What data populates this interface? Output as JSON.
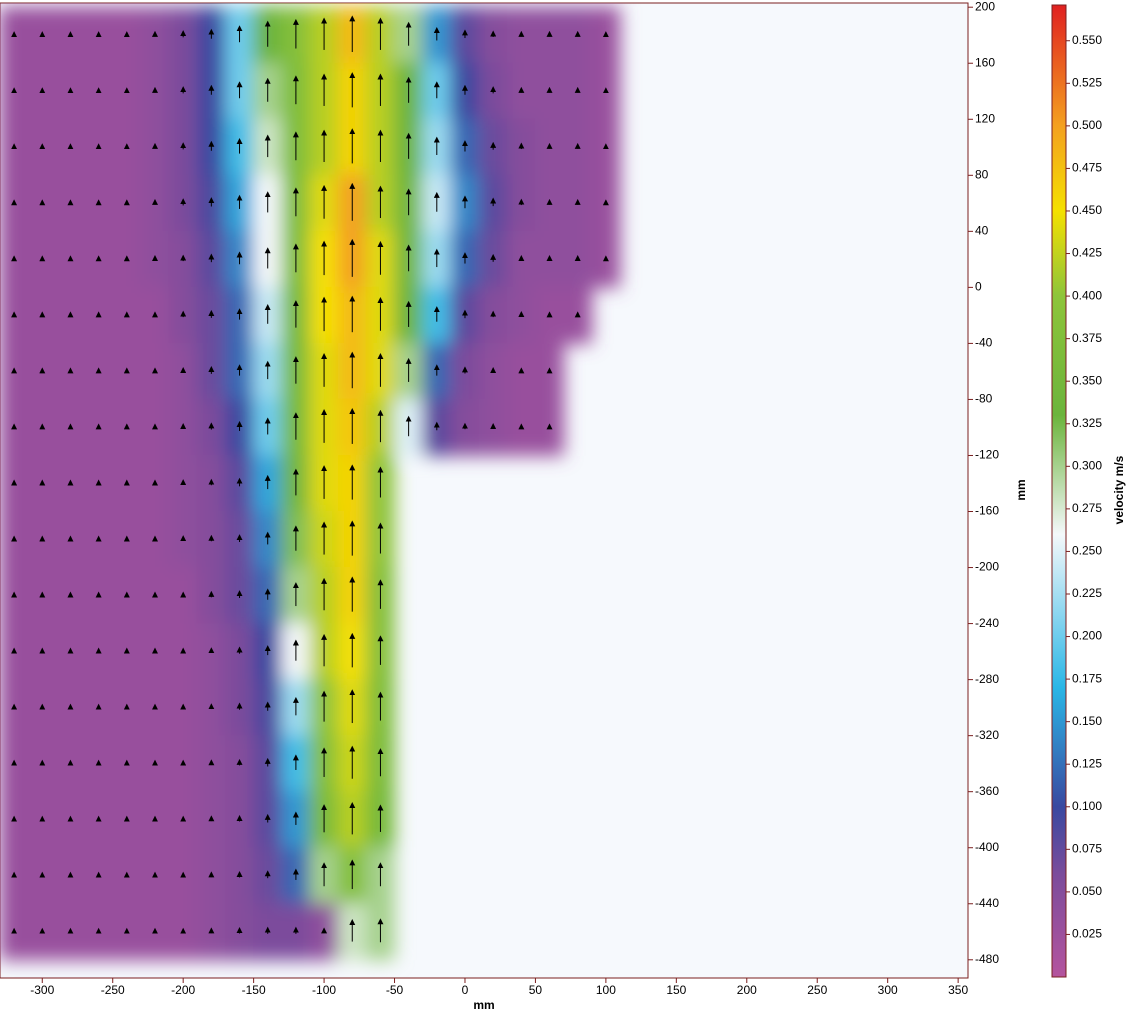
{
  "chart_data": {
    "type": "vector-heatmap",
    "x_label": "mm",
    "y_label": "mm",
    "colorbar_label": "velocity m/s",
    "xlim": [
      -330,
      357
    ],
    "ylim": [
      -493,
      203
    ],
    "xticks": [
      -300,
      -250,
      -200,
      -150,
      -100,
      -50,
      0,
      50,
      100,
      150,
      200,
      250,
      300,
      350
    ],
    "yticks": [
      200,
      160,
      120,
      80,
      40,
      0,
      -40,
      -80,
      -120,
      -160,
      -200,
      -240,
      -280,
      -320,
      -360,
      -400,
      -440,
      -480
    ],
    "clim": [
      0,
      0.571
    ],
    "cticks": [
      0.025,
      {
        "value": 0.05,
        "label": "0.050"
      },
      0.075,
      {
        "value": 0.1,
        "label": "0.100"
      },
      0.125,
      {
        "value": 0.15,
        "label": "0.150"
      },
      0.175,
      {
        "value": 0.2,
        "label": "0.200"
      },
      0.225,
      {
        "value": 0.25,
        "label": "0.250"
      },
      0.275,
      {
        "value": 0.3,
        "label": "0.300"
      },
      0.325,
      {
        "value": 0.35,
        "label": "0.350"
      },
      0.375,
      {
        "value": 0.4,
        "label": "0.400"
      },
      0.425,
      {
        "value": 0.45,
        "label": "0.450"
      },
      0.475,
      {
        "value": 0.5,
        "label": "0.500"
      },
      0.525,
      {
        "value": 0.55,
        "label": "0.550"
      }
    ],
    "colormap": [
      {
        "value": 0,
        "color": "#b4549e"
      },
      {
        "value": 0.06,
        "color": "#7c4c9c"
      },
      {
        "value": 0.1,
        "color": "#3a48a0"
      },
      {
        "value": 0.17,
        "color": "#2bb6e6"
      },
      {
        "value": 0.26,
        "color": "#f4f8fa"
      },
      {
        "value": 0.33,
        "color": "#6cb43c"
      },
      {
        "value": 0.4,
        "color": "#8ec43a"
      },
      {
        "value": 0.45,
        "color": "#f5e000"
      },
      {
        "value": 0.5,
        "color": "#f4a020"
      },
      {
        "value": 0.571,
        "color": "#e02020"
      }
    ],
    "x": [
      -320,
      -300,
      -280,
      -260,
      -240,
      -220,
      -200,
      -180,
      -160,
      -140,
      -120,
      -100,
      -80,
      -60,
      -40,
      -20,
      0,
      20,
      40,
      60,
      80,
      100
    ],
    "y": [
      180,
      140,
      100,
      60,
      20,
      -20,
      -60,
      -100,
      -140,
      -180,
      -220,
      -260,
      -300,
      -340,
      -380,
      -420,
      -460
    ],
    "values": [
      [
        0.03,
        0.03,
        0.03,
        0.03,
        0.03,
        0.04,
        0.06,
        0.1,
        0.2,
        0.33,
        0.38,
        0.42,
        0.48,
        0.42,
        0.3,
        0.15,
        0.08,
        0.05,
        0.04,
        0.04,
        0.04,
        0.03
      ],
      [
        0.03,
        0.03,
        0.03,
        0.03,
        0.03,
        0.04,
        0.06,
        0.1,
        0.2,
        0.3,
        0.37,
        0.42,
        0.46,
        0.42,
        0.33,
        0.2,
        0.1,
        0.06,
        0.04,
        0.04,
        0.04,
        0.03
      ],
      [
        0.03,
        0.03,
        0.03,
        0.03,
        0.03,
        0.04,
        0.06,
        0.1,
        0.18,
        0.28,
        0.37,
        0.42,
        0.46,
        0.42,
        0.33,
        0.22,
        0.12,
        0.07,
        0.05,
        0.04,
        0.04,
        0.03
      ],
      [
        0.03,
        0.03,
        0.03,
        0.03,
        0.03,
        0.04,
        0.06,
        0.09,
        0.16,
        0.26,
        0.37,
        0.44,
        0.5,
        0.42,
        0.34,
        0.24,
        0.14,
        0.08,
        0.05,
        0.04,
        0.04,
        0.03
      ],
      [
        0.03,
        0.03,
        0.03,
        0.03,
        0.03,
        0.04,
        0.05,
        0.08,
        0.14,
        0.26,
        0.37,
        0.45,
        0.5,
        0.44,
        0.34,
        0.22,
        0.12,
        0.07,
        0.04,
        0.04,
        0.04,
        0.03
      ],
      [
        0.03,
        0.03,
        0.03,
        0.03,
        0.03,
        0.03,
        0.05,
        0.07,
        0.12,
        0.24,
        0.35,
        0.45,
        0.48,
        0.44,
        0.33,
        0.18,
        0.08,
        0.05,
        0.04,
        0.03,
        0.03,
        null
      ],
      [
        0.03,
        0.03,
        0.03,
        0.03,
        0.03,
        0.03,
        0.04,
        0.07,
        0.12,
        0.22,
        0.35,
        0.44,
        0.48,
        0.44,
        0.3,
        0.12,
        0.06,
        0.04,
        0.03,
        0.03,
        null,
        null
      ],
      [
        0.03,
        0.03,
        0.03,
        0.03,
        0.03,
        0.03,
        0.04,
        0.06,
        0.1,
        0.2,
        0.35,
        0.44,
        0.47,
        0.42,
        0.25,
        0.08,
        0.05,
        0.04,
        0.03,
        0.03,
        null,
        null
      ],
      [
        0.03,
        0.03,
        0.03,
        0.03,
        0.03,
        0.03,
        0.04,
        0.05,
        0.08,
        0.16,
        0.34,
        0.44,
        0.46,
        0.4,
        null,
        null,
        null,
        null,
        null,
        null,
        null,
        null
      ],
      [
        0.03,
        0.03,
        0.03,
        0.03,
        0.03,
        0.03,
        0.04,
        0.05,
        0.07,
        0.14,
        0.32,
        0.43,
        0.46,
        0.4,
        null,
        null,
        null,
        null,
        null,
        null,
        null,
        null
      ],
      [
        0.03,
        0.03,
        0.03,
        0.03,
        0.03,
        0.03,
        0.03,
        0.05,
        0.07,
        0.12,
        0.3,
        0.42,
        0.46,
        0.38,
        null,
        null,
        null,
        null,
        null,
        null,
        null,
        null
      ],
      [
        0.03,
        0.03,
        0.03,
        0.03,
        0.03,
        0.03,
        0.03,
        0.04,
        0.06,
        0.1,
        0.26,
        0.42,
        0.45,
        0.38,
        null,
        null,
        null,
        null,
        null,
        null,
        null,
        null
      ],
      [
        0.03,
        0.03,
        0.03,
        0.03,
        0.03,
        0.03,
        0.03,
        0.04,
        0.06,
        0.09,
        0.22,
        0.4,
        0.44,
        0.37,
        null,
        null,
        null,
        null,
        null,
        null,
        null,
        null
      ],
      [
        0.03,
        0.03,
        0.03,
        0.03,
        0.03,
        0.03,
        0.03,
        0.04,
        0.05,
        0.08,
        0.18,
        0.38,
        0.43,
        0.36,
        null,
        null,
        null,
        null,
        null,
        null,
        null,
        null
      ],
      [
        0.03,
        0.03,
        0.03,
        0.03,
        0.03,
        0.03,
        0.03,
        0.04,
        0.05,
        0.08,
        0.15,
        0.36,
        0.42,
        0.35,
        null,
        null,
        null,
        null,
        null,
        null,
        null,
        null
      ],
      [
        0.03,
        0.03,
        0.03,
        0.03,
        0.03,
        0.03,
        0.03,
        0.04,
        0.05,
        0.07,
        0.12,
        0.3,
        0.38,
        0.3,
        null,
        null,
        null,
        null,
        null,
        null,
        null,
        null
      ],
      [
        0.03,
        0.03,
        0.03,
        0.03,
        0.03,
        0.03,
        0.03,
        0.04,
        0.05,
        0.06,
        0.06,
        0.04,
        0.28,
        0.3,
        null,
        null,
        null,
        null,
        null,
        null,
        null,
        null
      ]
    ]
  }
}
